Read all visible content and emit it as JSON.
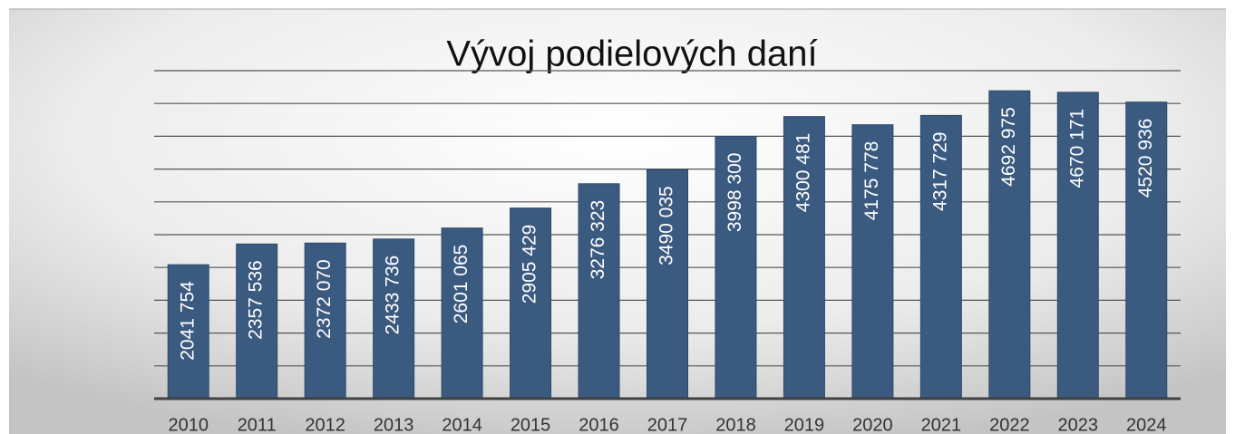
{
  "chart_data": {
    "type": "bar",
    "title": "Vývoj podielových daní",
    "categories": [
      "2010",
      "2011",
      "2012",
      "2013",
      "2014",
      "2015",
      "2016",
      "2017",
      "2018",
      "2019",
      "2020",
      "2021",
      "2022",
      "2023",
      "2024"
    ],
    "values": [
      2041754,
      2357536,
      2372070,
      2433736,
      2601065,
      2905429,
      3276323,
      3490035,
      3998300,
      4300481,
      4175778,
      4317729,
      4692975,
      4670171,
      4520936
    ],
    "value_labels": [
      "2041 754",
      "2357 536",
      "2372 070",
      "2433 736",
      "2601 065",
      "2905 429",
      "3276 323",
      "3490 035",
      "3998 300",
      "4300 481",
      "4175 778",
      "4317 729",
      "4692 975",
      "4670 171",
      "4520 936"
    ],
    "color": "#3b5a80",
    "ylim": [
      0,
      5000000
    ],
    "yticks": [
      0,
      500000,
      1000000,
      1500000,
      2000000,
      2500000,
      3000000,
      3500000,
      4000000,
      4500000,
      5000000
    ],
    "grid": true
  }
}
